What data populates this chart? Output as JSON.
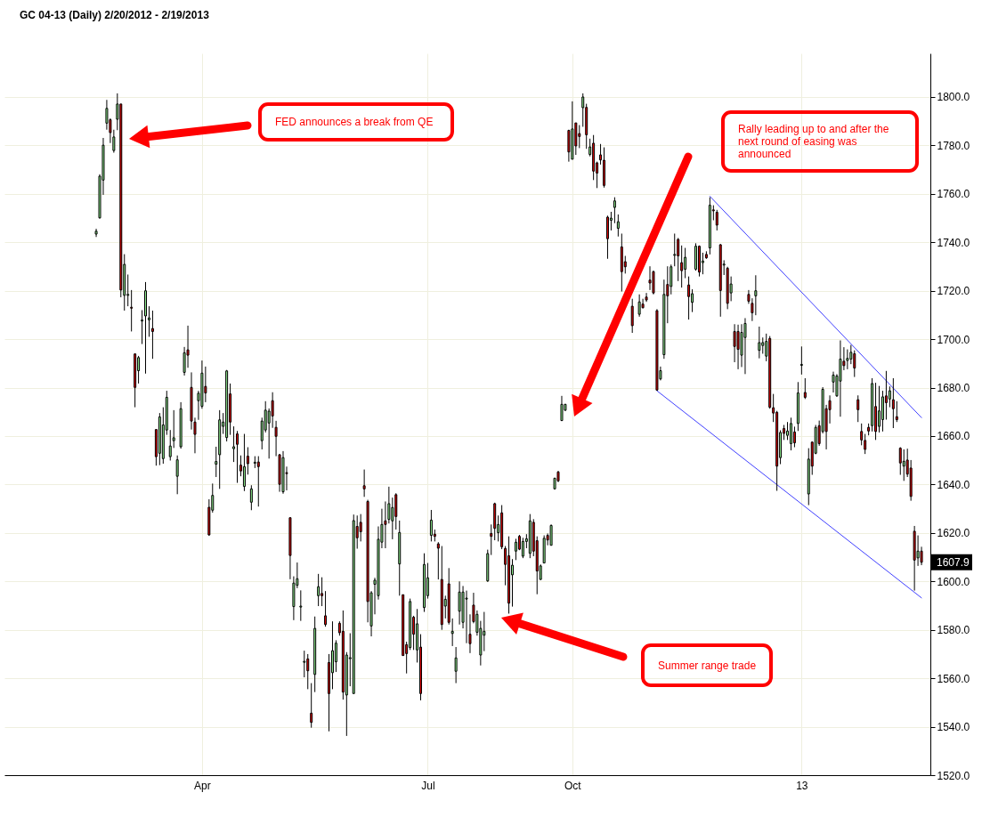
{
  "chart_data": {
    "type": "candlestick",
    "title": "GC 04-13 (Daily)  2/20/2012 - 2/19/2013",
    "categories": [
      null,
      null,
      null,
      null,
      null,
      null,
      null,
      null,
      null,
      null,
      null,
      null,
      null,
      null,
      null,
      null,
      null,
      null,
      null,
      null,
      null,
      null,
      null,
      null,
      null,
      null,
      null,
      null,
      null,
      null,
      "Apr",
      null,
      null,
      null,
      null,
      null,
      null,
      null,
      null,
      null,
      null,
      null,
      null,
      null,
      null,
      null,
      null,
      null,
      null,
      null,
      null,
      null,
      null,
      null,
      null,
      null,
      null,
      null,
      null,
      null,
      null,
      null,
      null,
      null,
      null,
      null,
      null,
      null,
      null,
      null,
      null,
      null,
      null,
      null,
      null,
      null,
      null,
      null,
      null,
      null,
      null,
      null,
      null,
      null,
      null,
      null,
      null,
      null,
      null,
      null,
      null,
      null,
      null,
      null,
      "Jul",
      null,
      null,
      null,
      null,
      null,
      null,
      null,
      null,
      null,
      null,
      null,
      null,
      null,
      null,
      null,
      null,
      null,
      null,
      null,
      null,
      null,
      null,
      null,
      null,
      null,
      null,
      null,
      null,
      null,
      null,
      null,
      null,
      null,
      null,
      null,
      null,
      null,
      null,
      null,
      null,
      "Oct",
      null,
      null,
      null,
      null,
      null,
      null,
      null,
      null,
      null,
      null,
      null,
      null,
      null,
      null,
      null,
      null,
      null,
      null,
      null,
      null,
      null,
      null,
      null,
      null,
      null,
      null,
      null,
      null,
      null,
      null,
      null,
      null,
      null,
      null,
      null,
      null,
      null,
      null,
      null,
      null,
      null,
      null,
      null,
      null,
      null,
      null,
      null,
      null,
      null,
      null,
      null,
      null,
      null,
      null,
      null,
      null,
      null,
      null,
      null,
      null,
      null,
      null,
      null,
      null,
      "13",
      null,
      null,
      null,
      null,
      null,
      null,
      null,
      null,
      null,
      null,
      null,
      null,
      null,
      null,
      null,
      null,
      null,
      null,
      null,
      null,
      null,
      null,
      null,
      null,
      null,
      null,
      null,
      null,
      null,
      null,
      null,
      null,
      null,
      null
    ],
    "ohlc": [
      [
        1743.4,
        1745.6,
        1742.2,
        1744.6
      ],
      [
        1750.1,
        1768.1,
        1749.8,
        1767.3
      ],
      [
        1765.7,
        1783.1,
        1759.6,
        1780.1
      ],
      [
        1789.2,
        1798.8,
        1786.5,
        1795.3
      ],
      [
        1790.6,
        1791.2,
        1781.0,
        1785.3
      ],
      [
        1777.9,
        1786.5,
        1777.0,
        1783.5
      ],
      [
        1790.8,
        1801.5,
        1786.3,
        1797.1
      ],
      [
        1797.1,
        1797.1,
        1717.3,
        1720.3
      ],
      [
        1718.1,
        1735.1,
        1711.8,
        1730.9
      ],
      [
        1718.1,
        1726.7,
        1713.6,
        1718.5
      ],
      [
        1713.2,
        1720.3,
        1703.2,
        1712.8
      ],
      [
        1693.9,
        1694.2,
        1671.9,
        1680.1
      ],
      [
        1687.0,
        1693.1,
        1681.7,
        1692.4
      ],
      [
        1707.5,
        1712.0,
        1698.0,
        1707.9
      ],
      [
        1709.6,
        1723.6,
        1685.8,
        1720.0
      ],
      [
        1708.0,
        1713.6,
        1701.0,
        1708.8
      ],
      [
        1704.4,
        1711.8,
        1691.9,
        1703.2
      ],
      [
        1662.7,
        1662.7,
        1647.8,
        1651.5
      ],
      [
        1652.9,
        1669.5,
        1648.0,
        1667.9
      ],
      [
        1650.7,
        1671.9,
        1648.6,
        1664.6
      ],
      [
        1662.5,
        1678.7,
        1660.5,
        1676.0
      ],
      [
        1651.5,
        1662.5,
        1649.9,
        1655.9
      ],
      [
        1658.1,
        1670.7,
        1655.1,
        1659.3
      ],
      [
        1643.4,
        1652.0,
        1636.0,
        1650.2
      ],
      [
        1655.6,
        1674.0,
        1654.8,
        1671.3
      ],
      [
        1686.3,
        1696.8,
        1685.0,
        1694.4
      ],
      [
        1695.6,
        1705.6,
        1688.2,
        1693.4
      ],
      [
        1680.1,
        1686.3,
        1662.7,
        1666.2
      ],
      [
        1665.8,
        1667.6,
        1652.9,
        1660.7
      ],
      [
        1674.6,
        1678.7,
        1666.7,
        1677.7
      ],
      [
        1672.3,
        1691.2,
        1671.3,
        1686.0
      ],
      [
        1680.5,
        1688.7,
        1674.0,
        1677.8
      ],
      [
        1630.6,
        1633.9,
        1618.8,
        1619.2
      ],
      [
        1629.4,
        1640.4,
        1628.4,
        1635.5
      ],
      [
        1648.4,
        1655.6,
        1643.1,
        1649.5
      ],
      [
        1652.3,
        1670.7,
        1638.2,
        1666.7
      ],
      [
        1664.0,
        1669.5,
        1660.9,
        1665.8
      ],
      [
        1659.4,
        1687.3,
        1657.8,
        1686.9
      ],
      [
        1677.4,
        1681.7,
        1660.5,
        1665.8
      ],
      [
        1654.8,
        1664.0,
        1649.3,
        1655.6
      ],
      [
        1660.9,
        1662.1,
        1640.7,
        1656.6
      ],
      [
        1648.0,
        1652.0,
        1643.4,
        1645.6
      ],
      [
        1639.2,
        1660.9,
        1637.3,
        1647.4
      ],
      [
        1651.7,
        1655.4,
        1644.1,
        1648.6
      ],
      [
        1632.7,
        1639.7,
        1629.4,
        1638.2
      ],
      [
        1648.8,
        1651.7,
        1646.8,
        1649.2
      ],
      [
        1649.3,
        1651.7,
        1630.9,
        1647.4
      ],
      [
        1658.1,
        1667.6,
        1654.5,
        1666.2
      ],
      [
        1662.5,
        1674.4,
        1661.5,
        1670.7
      ],
      [
        1665.4,
        1671.4,
        1650.7,
        1670.3
      ],
      [
        1674.6,
        1678.1,
        1663.4,
        1668.3
      ],
      [
        1663.6,
        1666.3,
        1651.7,
        1659.9
      ],
      [
        1652.3,
        1652.6,
        1637.0,
        1640.1
      ],
      [
        1637.0,
        1653.8,
        1636.2,
        1651.1
      ],
      [
        1644.9,
        1647.4,
        1637.6,
        1644.5
      ],
      [
        1626.3,
        1626.3,
        1600.9,
        1610.7
      ],
      [
        1589.6,
        1602.1,
        1584.0,
        1599.3
      ],
      [
        1598.4,
        1607.8,
        1597.2,
        1601.1
      ],
      [
        1589.4,
        1596.3,
        1583.7,
        1589.8
      ],
      [
        1566.6,
        1571.4,
        1560.4,
        1567.0
      ],
      [
        1568.0,
        1570.0,
        1555.5,
        1563.1
      ],
      [
        1545.6,
        1558.0,
        1539.6,
        1541.8
      ],
      [
        1561.6,
        1585.5,
        1554.3,
        1580.6
      ],
      [
        1594.1,
        1603.1,
        1589.8,
        1597.8
      ],
      [
        1595.0,
        1601.7,
        1589.8,
        1594.1
      ],
      [
        1585.8,
        1596.0,
        1581.3,
        1582.2
      ],
      [
        1566.5,
        1570.0,
        1538.1,
        1553.7
      ],
      [
        1562.3,
        1583.5,
        1555.5,
        1571.4
      ],
      [
        1566.8,
        1575.7,
        1562.6,
        1574.5
      ],
      [
        1582.7,
        1583.5,
        1577.6,
        1578.8
      ],
      [
        1579.4,
        1588.0,
        1551.2,
        1554.3
      ],
      [
        1553.1,
        1570.8,
        1536.2,
        1569.6
      ],
      [
        1568.1,
        1578.6,
        1556.7,
        1568.5
      ],
      [
        1553.7,
        1627.6,
        1553.7,
        1625.1
      ],
      [
        1622.7,
        1627.2,
        1613.5,
        1618.0
      ],
      [
        1624.4,
        1627.8,
        1616.5,
        1620.5
      ],
      [
        1639.5,
        1646.2,
        1634.9,
        1638.2
      ],
      [
        1633.0,
        1633.7,
        1583.1,
        1591.7
      ],
      [
        1581.6,
        1596.0,
        1577.3,
        1595.3
      ],
      [
        1598.8,
        1601.5,
        1586.4,
        1600.5
      ],
      [
        1594.1,
        1622.7,
        1592.5,
        1617.4
      ],
      [
        1616.2,
        1630.0,
        1613.7,
        1623.5
      ],
      [
        1625.0,
        1633.0,
        1613.7,
        1623.5
      ],
      [
        1625.6,
        1639.1,
        1623.9,
        1632.1
      ],
      [
        1625.0,
        1634.6,
        1617.4,
        1630.5
      ],
      [
        1635.8,
        1636.4,
        1621.4,
        1626.8
      ],
      [
        1607.2,
        1625.1,
        1594.1,
        1620.2
      ],
      [
        1594.5,
        1594.5,
        1569.2,
        1569.4
      ],
      [
        1573.9,
        1575.1,
        1562.0,
        1570.2
      ],
      [
        1572.7,
        1592.9,
        1571.7,
        1591.7
      ],
      [
        1585.2,
        1585.8,
        1571.7,
        1578.2
      ],
      [
        1571.7,
        1588.6,
        1566.5,
        1582.5
      ],
      [
        1572.9,
        1578.2,
        1550.9,
        1553.7
      ],
      [
        1589.2,
        1611.6,
        1587.4,
        1607.0
      ],
      [
        1594.1,
        1607.6,
        1592.9,
        1601.5
      ],
      [
        1619.0,
        1629.5,
        1616.5,
        1625.3
      ],
      [
        1619.5,
        1621.4,
        1616.5,
        1618.6
      ],
      [
        1615.5,
        1616.2,
        1600.8,
        1613.7
      ],
      [
        1600.8,
        1614.6,
        1580.0,
        1582.2
      ],
      [
        1589.8,
        1594.1,
        1584.7,
        1592.6
      ],
      [
        1599.0,
        1605.5,
        1582.2,
        1583.1
      ],
      [
        1578.5,
        1584.7,
        1573.3,
        1579.4
      ],
      [
        1562.9,
        1572.9,
        1558.0,
        1568.4
      ],
      [
        1587.7,
        1600.0,
        1582.2,
        1595.6
      ],
      [
        1583.1,
        1598.1,
        1580.6,
        1595.6
      ],
      [
        1592.7,
        1596.2,
        1574.5,
        1593.1
      ],
      [
        1578.2,
        1586.4,
        1570.4,
        1574.3
      ],
      [
        1590.2,
        1595.3,
        1582.7,
        1583.4
      ],
      [
        1579.0,
        1588.0,
        1577.6,
        1586.4
      ],
      [
        1569.6,
        1583.7,
        1565.3,
        1580.6
      ],
      [
        1577.8,
        1587.4,
        1571.2,
        1579.4
      ],
      [
        1600.2,
        1613.1,
        1599.8,
        1611.5
      ],
      [
        1619.8,
        1623.5,
        1610.9,
        1618.6
      ],
      [
        1632.1,
        1632.5,
        1617.0,
        1621.9
      ],
      [
        1620.1,
        1627.2,
        1616.5,
        1623.5
      ],
      [
        1628.3,
        1631.5,
        1613.3,
        1614.3
      ],
      [
        1613.6,
        1614.6,
        1598.4,
        1607.0
      ],
      [
        1610.6,
        1618.6,
        1586.7,
        1591.0
      ],
      [
        1602.7,
        1609.2,
        1589.6,
        1606.7
      ],
      [
        1612.5,
        1617.6,
        1608.8,
        1616.2
      ],
      [
        1618.6,
        1619.2,
        1612.9,
        1613.3
      ],
      [
        1610.4,
        1618.0,
        1609.6,
        1616.5
      ],
      [
        1616.5,
        1619.5,
        1613.7,
        1617.6
      ],
      [
        1611.6,
        1627.8,
        1609.6,
        1625.0
      ],
      [
        1624.4,
        1625.7,
        1610.4,
        1612.5
      ],
      [
        1616.8,
        1618.6,
        1594.7,
        1604.3
      ],
      [
        1600.8,
        1607.0,
        1600.6,
        1606.4
      ],
      [
        1607.6,
        1619.0,
        1607.6,
        1617.8
      ],
      [
        1619.0,
        1619.8,
        1614.9,
        1617.1
      ],
      [
        1614.9,
        1623.5,
        1614.9,
        1623.1
      ],
      [
        1638.2,
        1642.8,
        1638.0,
        1642.6
      ],
      [
        1645.2,
        1645.6,
        1641.0,
        1641.5
      ],
      [
        1666.4,
        1676.6,
        1666.2,
        1673.1
      ],
      [
        1670.7,
        1673.3,
        1670.3,
        1673.1
      ],
      [
        1786.2,
        1786.5,
        1773.3,
        1777.3
      ],
      [
        1774.3,
        1798.2,
        1774.3,
        1786.8
      ],
      [
        1789.3,
        1789.3,
        1776.1,
        1779.8
      ],
      [
        1784.9,
        1788.4,
        1778.9,
        1783.7
      ],
      [
        1795.6,
        1801.5,
        1787.7,
        1800.0
      ],
      [
        1795.7,
        1797.2,
        1778.6,
        1784.4
      ],
      [
        1776.3,
        1782.8,
        1775.5,
        1779.4
      ],
      [
        1780.9,
        1784.3,
        1765.7,
        1769.4
      ],
      [
        1772.8,
        1773.3,
        1762.4,
        1768.6
      ],
      [
        1776.1,
        1780.6,
        1772.1,
        1774.0
      ],
      [
        1773.9,
        1779.2,
        1762.6,
        1763.5
      ],
      [
        1750.4,
        1751.0,
        1733.2,
        1741.5
      ],
      [
        1749.1,
        1752.6,
        1744.9,
        1750.0
      ],
      [
        1754.4,
        1758.6,
        1747.9,
        1757.1
      ],
      [
        1745.8,
        1751.5,
        1742.4,
        1748.5
      ],
      [
        1738.1,
        1743.6,
        1719.7,
        1727.9
      ],
      [
        1732.0,
        1734.4,
        1727.1,
        1729.9
      ],
      null,
      [
        1713.6,
        1716.7,
        1702.6,
        1705.6
      ],
      null,
      [
        1710.3,
        1718.5,
        1709.3,
        1715.4
      ],
      [
        1714.5,
        1716.7,
        1712.7,
        1713.0
      ],
      [
        1717.4,
        1719.1,
        1715.4,
        1716.2
      ],
      [
        1724.4,
        1730.1,
        1720.3,
        1723.2
      ],
      [
        1727.9,
        1728.3,
        1718.5,
        1719.1
      ],
      [
        1711.8,
        1712.4,
        1678.7,
        1679.0
      ],
      [
        1683.6,
        1688.7,
        1683.0,
        1687.0
      ],
      [
        1693.6,
        1724.6,
        1691.9,
        1718.5
      ],
      [
        1722.6,
        1730.1,
        1706.6,
        1717.9
      ],
      [
        1721.8,
        1730.8,
        1718.5,
        1729.9
      ],
      [
        1734.6,
        1743.6,
        1730.1,
        1735.0
      ],
      [
        1741.2,
        1741.8,
        1724.0,
        1734.4
      ],
      [
        1731.6,
        1738.7,
        1721.3,
        1728.3
      ],
      [
        1728.9,
        1737.7,
        1725.2,
        1733.8
      ],
      [
        1722.4,
        1725.9,
        1708.1,
        1717.6
      ],
      [
        1715.2,
        1720.6,
        1711.2,
        1718.8
      ],
      [
        1728.9,
        1739.6,
        1728.3,
        1738.4
      ],
      [
        1738.4,
        1738.7,
        1725.9,
        1727.7
      ],
      [
        1731.6,
        1735.7,
        1726.8,
        1732.3
      ],
      [
        1735.0,
        1736.3,
        1733.2,
        1733.6
      ],
      [
        1737.7,
        1758.6,
        1735.0,
        1755.3
      ],
      [
        1753.4,
        1755.3,
        1749.1,
        1753.0
      ],
      [
        1752.4,
        1753.4,
        1744.9,
        1747.1
      ],
      [
        1739.0,
        1739.3,
        1709.3,
        1720.1
      ],
      [
        1730.6,
        1732.6,
        1726.5,
        1731.0
      ],
      [
        1729.3,
        1729.9,
        1712.4,
        1714.8
      ],
      [
        1719.1,
        1725.9,
        1715.7,
        1722.8
      ],
      [
        1703.2,
        1706.2,
        1690.5,
        1697.0
      ],
      [
        1703.2,
        1706.0,
        1687.6,
        1695.8
      ],
      [
        1693.4,
        1706.2,
        1688.5,
        1702.8
      ],
      [
        1700.7,
        1708.7,
        1685.6,
        1706.5
      ],
      [
        1718.5,
        1720.3,
        1714.6,
        1715.7
      ],
      [
        1714.8,
        1716.9,
        1707.5,
        1710.9
      ],
      [
        1717.9,
        1726.4,
        1709.9,
        1720.0
      ],
      [
        1695.4,
        1705.2,
        1692.1,
        1698.6
      ],
      [
        1697.4,
        1700.7,
        1694.0,
        1698.6
      ],
      [
        1693.0,
        1702.3,
        1690.9,
        1699.1
      ],
      [
        1700.3,
        1701.3,
        1671.3,
        1671.9
      ],
      [
        1671.7,
        1677.4,
        1665.8,
        1669.5
      ],
      [
        1669.8,
        1670.4,
        1637.4,
        1647.6
      ],
      [
        1651.1,
        1662.4,
        1648.4,
        1661.5
      ],
      [
        1663.1,
        1664.6,
        1658.4,
        1661.1
      ],
      [
        1660.3,
        1665.8,
        1658.4,
        1662.1
      ],
      [
        1656.9,
        1667.6,
        1654.1,
        1665.2
      ],
      [
        1661.7,
        1663.9,
        1655.4,
        1657.2
      ],
      [
        1665.2,
        1682.3,
        1662.1,
        1677.8
      ],
      [
        1689.2,
        1697.0,
        1685.4,
        1689.6
      ],
      [
        1678.0,
        1683.9,
        1675.3,
        1676.0
      ],
      [
        1636.1,
        1655.0,
        1631.5,
        1650.5
      ],
      [
        1657.5,
        1657.8,
        1644.0,
        1647.6
      ],
      [
        1652.9,
        1664.6,
        1652.5,
        1663.6
      ],
      [
        1664.3,
        1666.4,
        1656.0,
        1656.9
      ],
      [
        1661.9,
        1680.2,
        1661.1,
        1679.3
      ],
      [
        1671.3,
        1672.9,
        1654.5,
        1661.9
      ],
      [
        1674.6,
        1676.8,
        1665.2,
        1670.9
      ],
      [
        1682.3,
        1686.6,
        1678.0,
        1685.2
      ],
      [
        1676.6,
        1685.6,
        1676.2,
        1684.8
      ],
      [
        1682.7,
        1699.5,
        1668.0,
        1691.8
      ],
      [
        1690.9,
        1696.7,
        1687.2,
        1689.1
      ],
      [
        1691.2,
        1695.8,
        1687.6,
        1692.1
      ],
      [
        1691.8,
        1697.6,
        1689.7,
        1694.6
      ],
      [
        1694.0,
        1695.4,
        1684.4,
        1688.1
      ],
      [
        1675.0,
        1676.8,
        1665.8,
        1670.9
      ],
      [
        1661.9,
        1665.2,
        1656.2,
        1658.4
      ],
      [
        1658.2,
        1660.9,
        1652.6,
        1654.5
      ],
      [
        1663.6,
        1665.2,
        1660.3,
        1662.1
      ],
      [
        1664.3,
        1683.9,
        1661.9,
        1681.7
      ],
      [
        1672.2,
        1682.0,
        1658.4,
        1661.9
      ],
      [
        1664.0,
        1680.7,
        1661.5,
        1670.4
      ],
      [
        1666.8,
        1678.7,
        1661.9,
        1676.2
      ],
      [
        1676.6,
        1686.9,
        1666.8,
        1673.8
      ],
      [
        1675.3,
        1680.5,
        1671.9,
        1678.7
      ],
      [
        1675.0,
        1683.9,
        1663.3,
        1671.3
      ],
      [
        1668.0,
        1674.4,
        1665.8,
        1666.8
      ],
      [
        1655.0,
        1655.4,
        1644.0,
        1648.9
      ],
      [
        1647.6,
        1654.5,
        1641.5,
        1649.6
      ],
      [
        1650.1,
        1654.8,
        1643.1,
        1644.3
      ],
      [
        1646.8,
        1650.1,
        1633.3,
        1635.1
      ],
      [
        1620.7,
        1622.9,
        1596.2,
        1608.8
      ],
      [
        1609.7,
        1619.0,
        1606.4,
        1612.5
      ],
      [
        1612.5,
        1614.3,
        1606.7,
        1607.9
      ]
    ],
    "colors": [
      "#90ee90",
      "#90ee90",
      "#90ee90",
      "#90ee90",
      "#e00000",
      "#90ee90",
      "#90ee90",
      "#e00000",
      "#90ee90",
      "#90ee90",
      "#e00000",
      "#e00000",
      "#90ee90",
      "#90ee90",
      "#90ee90",
      "#90ee90",
      "#e00000",
      "#e00000",
      "#90ee90",
      "#90ee90",
      "#90ee90",
      "#90ee90",
      "#90ee90",
      "#90ee90",
      "#90ee90",
      "#90ee90",
      "#e00000",
      "#e00000",
      "#e00000",
      "#90ee90",
      "#90ee90",
      "#e00000",
      "#e00000",
      "#90ee90",
      "#90ee90",
      "#90ee90",
      "#90ee90",
      "#90ee90",
      "#e00000",
      "#90ee90",
      "#e00000",
      "#e00000",
      "#90ee90",
      "#e00000",
      "#90ee90",
      "#90ee90",
      "#e00000",
      "#90ee90",
      "#90ee90",
      "#90ee90",
      "#e00000",
      "#e00000",
      "#e00000",
      "#90ee90",
      "#e00000",
      "#e00000",
      "#90ee90",
      "#90ee90",
      "#90ee90",
      "#90ee90",
      "#e00000",
      "#e00000",
      "#90ee90",
      "#90ee90",
      "#e00000",
      "#e00000",
      "#e00000",
      "#90ee90",
      "#90ee90",
      "#e00000",
      "#e00000",
      "#90ee90",
      "#90ee90",
      "#90ee90",
      "#e00000",
      "#e00000",
      "#e00000",
      "#e00000",
      "#90ee90",
      "#90ee90",
      "#90ee90",
      "#90ee90",
      "#e00000",
      "#90ee90",
      "#90ee90",
      "#e00000",
      "#90ee90",
      "#e00000",
      "#e00000",
      "#90ee90",
      "#e00000",
      "#90ee90",
      "#e00000",
      "#90ee90",
      "#90ee90",
      "#90ee90",
      "#e00000",
      "#e00000",
      "#e00000",
      "#90ee90",
      "#e00000",
      "#90ee90",
      "#90ee90",
      "#90ee90",
      "#90ee90",
      "#90ee90",
      "#e00000",
      "#e00000",
      "#90ee90",
      "#90ee90",
      "#90ee90",
      "#90ee90",
      "#e00000",
      "#e00000",
      "#90ee90",
      "#e00000",
      "#e00000",
      "#e00000",
      "#90ee90",
      "#90ee90",
      "#e00000",
      "#90ee90",
      "#90ee90",
      "#90ee90",
      "#e00000",
      "#e00000",
      "#90ee90",
      "#90ee90",
      "#e00000",
      "#90ee90",
      "#90ee90",
      "#e00000",
      "#90ee90",
      "#90ee90",
      "#e00000",
      "#90ee90",
      "#e00000",
      "#e00000",
      "#90ee90",
      "#e00000",
      "#90ee90",
      "#e00000",
      "#e00000",
      "#e00000",
      "#e00000",
      "#e00000",
      "#90ee90",
      "#90ee90",
      "#90ee90",
      "#e00000",
      "#e00000",
      null,
      "#e00000",
      null,
      "#90ee90",
      "#e00000",
      "#e00000",
      "#e00000",
      "#e00000",
      "#e00000",
      "#90ee90",
      "#90ee90",
      "#e00000",
      "#90ee90",
      "#90ee90",
      "#e00000",
      "#e00000",
      "#90ee90",
      "#e00000",
      "#90ee90",
      "#90ee90",
      "#e00000",
      "#90ee90",
      "#e00000",
      "#90ee90",
      "#e00000",
      "#e00000",
      "#e00000",
      "#90ee90",
      "#e00000",
      "#90ee90",
      "#e00000",
      "#e00000",
      "#90ee90",
      "#90ee90",
      "#e00000",
      "#e00000",
      "#90ee90",
      "#90ee90",
      "#90ee90",
      "#90ee90",
      "#e00000",
      "#e00000",
      "#e00000",
      "#90ee90",
      "#e00000",
      "#90ee90",
      "#90ee90",
      "#e00000",
      "#90ee90",
      "#90ee90",
      "#e00000",
      "#90ee90",
      "#e00000",
      "#90ee90",
      "#e00000",
      "#90ee90",
      "#e00000",
      "#e00000",
      "#90ee90",
      "#90ee90",
      "#90ee90",
      "#e00000",
      "#90ee90",
      "#90ee90",
      "#e00000",
      "#e00000",
      "#e00000",
      "#e00000",
      "#e00000",
      "#90ee90",
      "#e00000",
      "#90ee90",
      "#90ee90",
      "#e00000",
      "#90ee90",
      "#e00000",
      "#e00000",
      "#e00000",
      "#90ee90",
      "#e00000",
      "#e00000",
      "#e00000",
      "#90ee90",
      "#e00000"
    ],
    "series": [
      {
        "type": "line",
        "color": "#4040ff",
        "values": [
          null,
          null,
          null,
          null,
          null,
          null,
          null,
          null,
          null,
          null,
          null,
          null,
          null,
          null,
          null,
          null,
          null,
          null,
          null,
          null,
          null,
          null,
          null,
          null,
          null,
          null,
          null,
          null,
          null,
          null,
          null,
          null,
          null,
          null,
          null,
          null,
          null,
          null,
          null,
          null,
          null,
          null,
          null,
          null,
          null,
          null,
          null,
          null,
          null,
          null,
          null,
          null,
          null,
          null,
          null,
          null,
          null,
          null,
          null,
          null,
          null,
          null,
          null,
          null,
          null,
          null,
          null,
          null,
          null,
          null,
          null,
          null,
          null,
          null,
          null,
          null,
          null,
          null,
          null,
          null,
          null,
          null,
          null,
          null,
          null,
          null,
          null,
          null,
          null,
          null,
          null,
          null,
          null,
          null,
          null,
          null,
          null,
          null,
          null,
          null,
          null,
          null,
          null,
          null,
          null,
          null,
          null,
          null,
          null,
          null,
          null,
          null,
          null,
          null,
          null,
          null,
          null,
          null,
          null,
          null,
          null,
          null,
          null,
          null,
          null,
          null,
          null,
          null,
          null,
          null,
          null,
          null,
          null,
          null,
          null,
          null,
          null,
          null,
          null,
          null,
          null,
          null,
          null,
          null,
          null,
          null,
          null,
          null,
          null,
          null,
          null,
          null,
          null,
          null,
          null,
          null,
          null,
          null,
          null,
          null,
          null,
          null,
          null,
          null,
          null,
          null,
          null,
          null,
          null,
          null,
          null,
          null,
          null,
          null,
          1759.0,
          null,
          null,
          null,
          null,
          null,
          null,
          null,
          null,
          null,
          null,
          null,
          null,
          null,
          null,
          null,
          null,
          null,
          null,
          null,
          null,
          null,
          null,
          null,
          null,
          null,
          null,
          null,
          null,
          null,
          null,
          null,
          null,
          null,
          null,
          null,
          null,
          null,
          null,
          null,
          null,
          null,
          null,
          null,
          null,
          null,
          null,
          null,
          null,
          null,
          null,
          null,
          null,
          null,
          null,
          null,
          null,
          null,
          null,
          null,
          1667.6
        ]
      },
      {
        "type": "line",
        "color": "#4040ff",
        "values": [
          null,
          null,
          null,
          null,
          null,
          null,
          null,
          null,
          null,
          null,
          null,
          null,
          null,
          null,
          null,
          null,
          null,
          null,
          null,
          null,
          null,
          null,
          null,
          null,
          null,
          null,
          null,
          null,
          null,
          null,
          null,
          null,
          null,
          null,
          null,
          null,
          null,
          null,
          null,
          null,
          null,
          null,
          null,
          null,
          null,
          null,
          null,
          null,
          null,
          null,
          null,
          null,
          null,
          null,
          null,
          null,
          null,
          null,
          null,
          null,
          null,
          null,
          null,
          null,
          null,
          null,
          null,
          null,
          null,
          null,
          null,
          null,
          null,
          null,
          null,
          null,
          null,
          null,
          null,
          null,
          null,
          null,
          null,
          null,
          null,
          null,
          null,
          null,
          null,
          null,
          null,
          null,
          null,
          null,
          null,
          null,
          null,
          null,
          null,
          null,
          null,
          null,
          null,
          null,
          null,
          null,
          null,
          null,
          null,
          null,
          null,
          null,
          null,
          null,
          null,
          null,
          null,
          null,
          null,
          null,
          null,
          null,
          null,
          null,
          null,
          null,
          null,
          null,
          null,
          null,
          null,
          null,
          null,
          null,
          null,
          null,
          null,
          null,
          null,
          null,
          null,
          null,
          null,
          null,
          null,
          null,
          null,
          null,
          null,
          null,
          null,
          null,
          null,
          null,
          null,
          null,
          null,
          null,
          null,
          1678.7,
          null,
          null,
          null,
          null,
          null,
          null,
          null,
          null,
          null,
          null,
          null,
          null,
          null,
          null,
          null,
          null,
          null,
          null,
          null,
          null,
          null,
          null,
          null,
          null,
          null,
          null,
          null,
          null,
          null,
          null,
          null,
          null,
          null,
          null,
          null,
          null,
          null,
          null,
          null,
          null,
          null,
          null,
          null,
          null,
          null,
          null,
          null,
          null,
          null,
          null,
          null,
          null,
          null,
          null,
          null,
          null,
          null,
          null,
          null,
          null,
          null,
          null,
          null,
          null,
          null,
          null,
          null,
          null,
          null,
          null,
          null,
          null,
          null,
          null,
          1593.2
        ]
      }
    ],
    "ylim": [
      1520,
      1818
    ],
    "yticks": [
      {
        "value": 1520,
        "label": "1520.0"
      },
      {
        "value": 1540,
        "label": "1540.0"
      },
      {
        "value": 1560,
        "label": "1560.0"
      },
      {
        "value": 1580,
        "label": "1580.0"
      },
      {
        "value": 1600,
        "label": "1600.0"
      },
      {
        "value": 1620,
        "label": "1620.0"
      },
      {
        "value": 1640,
        "label": "1640.0"
      },
      {
        "value": 1660,
        "label": "1660.0"
      },
      {
        "value": 1680,
        "label": "1680.0"
      },
      {
        "value": 1700,
        "label": "1700.0"
      },
      {
        "value": 1720,
        "label": "1720.0"
      },
      {
        "value": 1740,
        "label": "1740.0"
      },
      {
        "value": 1760,
        "label": "1760.0"
      },
      {
        "value": 1780,
        "label": "1780.0"
      },
      {
        "value": 1800,
        "label": "1800.0"
      }
    ],
    "grid": true,
    "annotations": [
      "FED announces a break from QE",
      "Rally leading up to and after the next round of easing was announced",
      "Summer range trade",
      "1607.9"
    ]
  }
}
